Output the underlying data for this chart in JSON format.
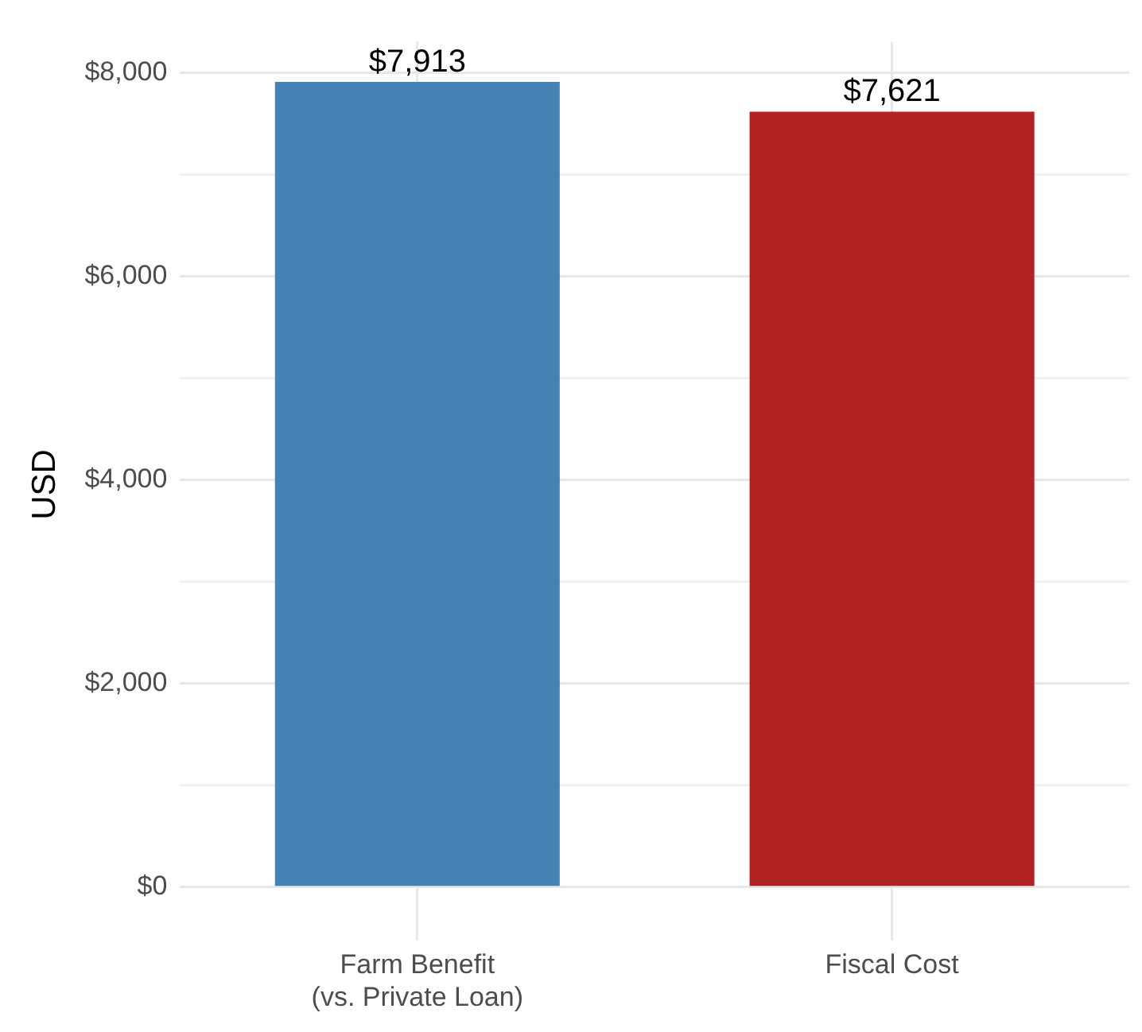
{
  "chart_data": {
    "type": "bar",
    "ylabel": "USD",
    "categories": [
      "Farm Benefit\n(vs. Private Loan)",
      "Fiscal Cost"
    ],
    "values": [
      7913,
      7621
    ],
    "colors": [
      "#4682b4",
      "#b22222"
    ],
    "value_labels": [
      "$7,913",
      "$7,621"
    ],
    "ylim": [
      -396,
      8309
    ],
    "yticks": [
      {
        "value": 0,
        "label": "$0"
      },
      {
        "value": 1000,
        "label": null
      },
      {
        "value": 2000,
        "label": "$2,000"
      },
      {
        "value": 3000,
        "label": null
      },
      {
        "value": 4000,
        "label": "$4,000"
      },
      {
        "value": 5000,
        "label": null
      },
      {
        "value": 6000,
        "label": "$6,000"
      },
      {
        "value": 7000,
        "label": null
      },
      {
        "value": 8000,
        "label": "$8,000"
      }
    ],
    "grid": true,
    "legend": false
  }
}
